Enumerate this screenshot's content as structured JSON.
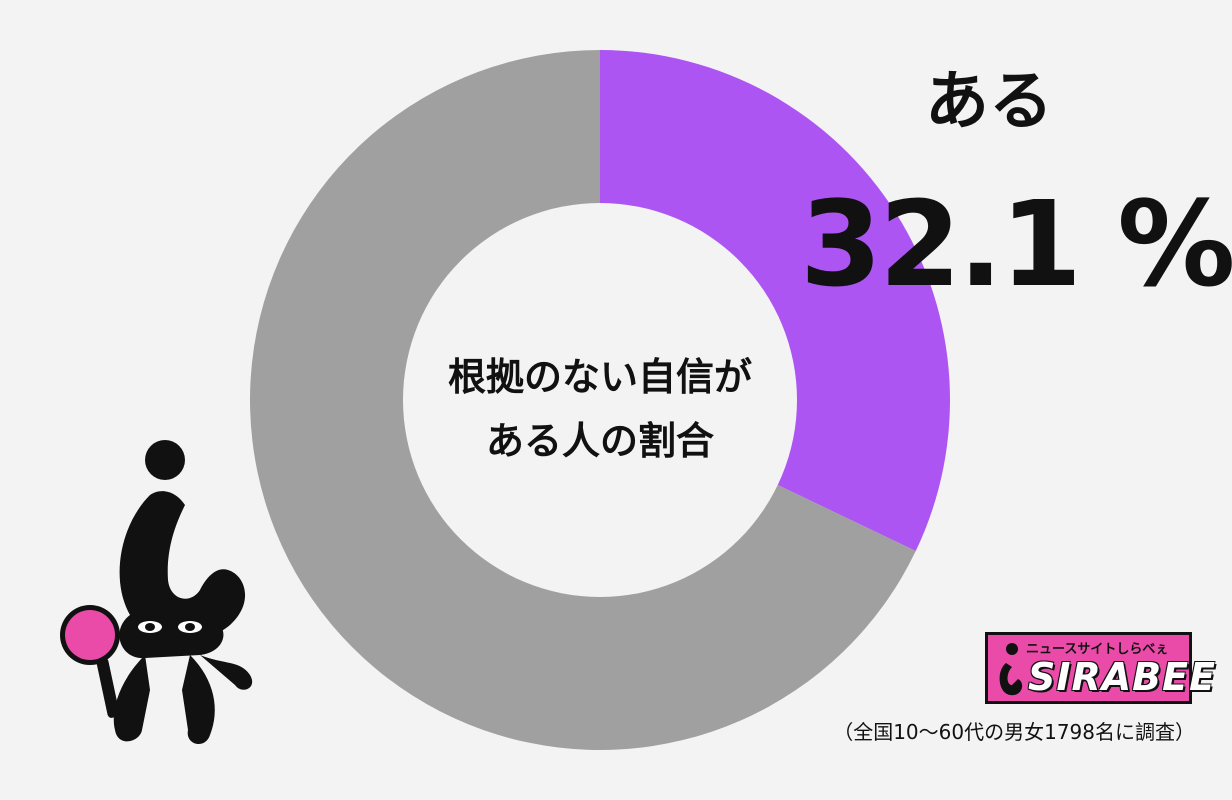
{
  "chart_data": {
    "type": "pie",
    "donut": true,
    "center_title_lines": [
      "根拠のない自信が",
      "ある人の割合"
    ],
    "slices": [
      {
        "label": "ある",
        "value": 32.1,
        "value_text": "32.1 %",
        "color": "#ad55f2"
      },
      {
        "label": "",
        "value": 67.9,
        "color": "#a0a0a0"
      }
    ],
    "start": "top",
    "direction": "clockwise"
  },
  "note": "（全国10〜60代の男女1798名に調査）",
  "logo": {
    "tagline": "ニュースサイトしらべぇ",
    "name": "SIRABEE"
  },
  "colors": {
    "background": "#f3f3f3",
    "accent": "#ad55f2",
    "rest": "#a0a0a0",
    "brand": "#ea4aa8"
  }
}
